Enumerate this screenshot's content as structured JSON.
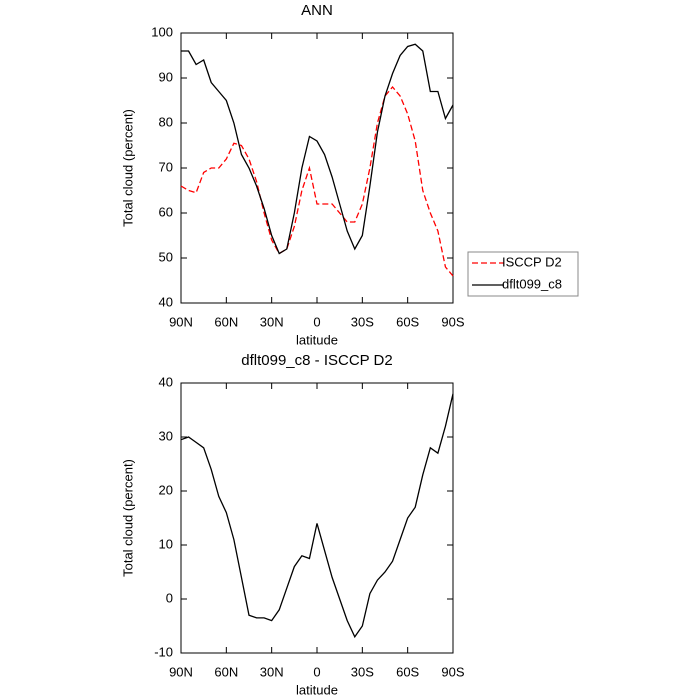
{
  "chart_data": [
    {
      "type": "line",
      "title": "ANN",
      "x_label": "latitude",
      "y_label": "Total cloud (percent)",
      "x": [
        90,
        85,
        80,
        75,
        70,
        65,
        60,
        55,
        50,
        45,
        40,
        35,
        30,
        25,
        20,
        15,
        10,
        5,
        0,
        -5,
        -10,
        -15,
        -20,
        -25,
        -30,
        -35,
        -40,
        -45,
        -50,
        -55,
        -60,
        -65,
        -70,
        -75,
        -80,
        -85,
        -90
      ],
      "series": [
        {
          "name": "ISCCP D2",
          "color": "#ff0000",
          "line_style": "dashed",
          "values": [
            66,
            65,
            64.5,
            69,
            70,
            70,
            72,
            75.5,
            75,
            72,
            67,
            60,
            54,
            51,
            52,
            57,
            65,
            70,
            62,
            62,
            62,
            60,
            58,
            58,
            62,
            70,
            80,
            86,
            88,
            86,
            82,
            76,
            65,
            60,
            56,
            48,
            46
          ]
        },
        {
          "name": "dflt099_c8",
          "color": "#000000",
          "line_style": "solid",
          "values": [
            96,
            96,
            93,
            94,
            89,
            87,
            85,
            80,
            73,
            70,
            66,
            61,
            55,
            51,
            52,
            60,
            70,
            77,
            76,
            73,
            68,
            62,
            56,
            52,
            55,
            66,
            78,
            86,
            91,
            95,
            97,
            97.5,
            96,
            87,
            87,
            81,
            84
          ]
        }
      ],
      "xlim": [
        90,
        -90
      ],
      "xticks": [
        {
          "value": 90,
          "label": "90N"
        },
        {
          "value": 60,
          "label": "60N"
        },
        {
          "value": 30,
          "label": "30N"
        },
        0,
        {
          "value": -30,
          "label": "30S"
        },
        {
          "value": -60,
          "label": "60S"
        },
        {
          "value": -90,
          "label": "90S"
        }
      ],
      "ylim": [
        40,
        100
      ],
      "yticks": [
        40,
        50,
        60,
        70,
        80,
        90,
        100
      ],
      "legend": "right"
    },
    {
      "type": "line",
      "title": "dflt099_c8 - ISCCP D2",
      "x_label": "latitude",
      "y_label": "Total cloud (percent)",
      "x": [
        90,
        85,
        80,
        75,
        70,
        65,
        60,
        55,
        50,
        45,
        40,
        35,
        30,
        25,
        20,
        15,
        10,
        5,
        0,
        -5,
        -10,
        -15,
        -20,
        -25,
        -30,
        -35,
        -40,
        -45,
        -50,
        -55,
        -60,
        -65,
        -70,
        -75,
        -80,
        -85,
        -90
      ],
      "series": [
        {
          "color": "#000000",
          "line_style": "solid",
          "values": [
            29.5,
            30,
            29,
            28,
            24,
            19,
            16,
            11,
            4,
            -3,
            -3.5,
            -3.5,
            -4,
            -2,
            2,
            6,
            8,
            7.5,
            14,
            9,
            4,
            0,
            -4,
            -7,
            -5,
            1,
            3.5,
            5,
            7,
            11,
            15,
            17,
            23,
            28,
            27,
            32,
            38
          ]
        }
      ],
      "xlim": [
        90,
        -90
      ],
      "xticks": [
        {
          "value": 90,
          "label": "90N"
        },
        {
          "value": 60,
          "label": "60N"
        },
        {
          "value": 30,
          "label": "30N"
        },
        0,
        {
          "value": -30,
          "label": "30S"
        },
        {
          "value": -60,
          "label": "60S"
        },
        {
          "value": -90,
          "label": "90S"
        }
      ],
      "ylim": [
        -10,
        40
      ],
      "yticks": [
        -10,
        0,
        10,
        20,
        30,
        40
      ]
    }
  ]
}
